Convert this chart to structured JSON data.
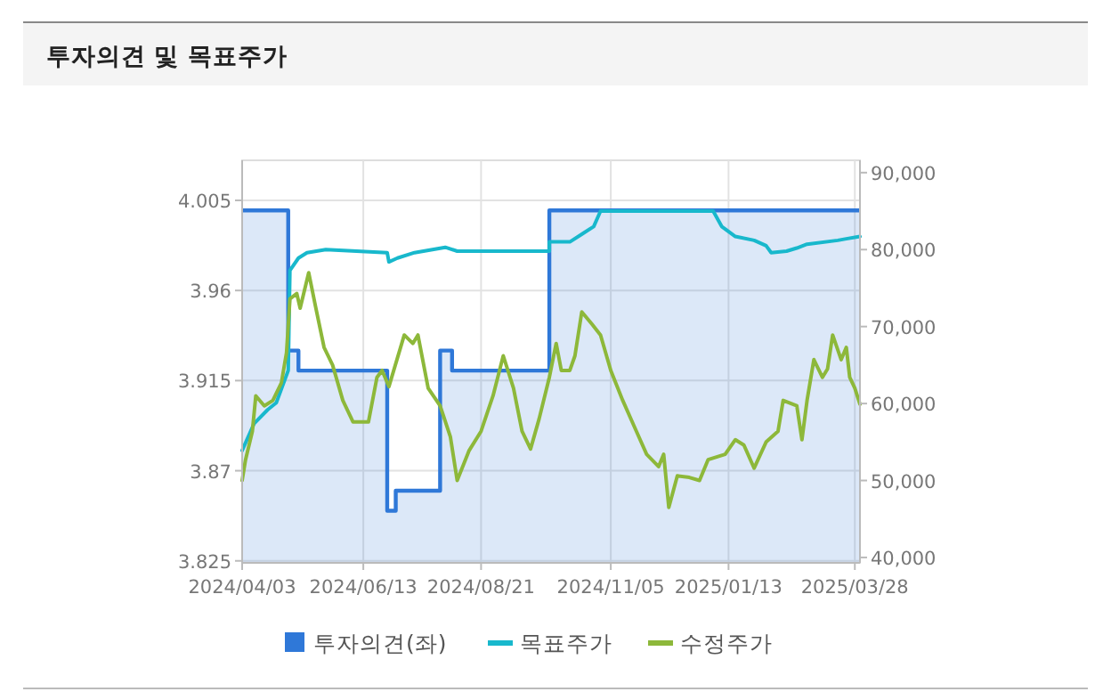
{
  "chart_data": {
    "type": "line",
    "title": "투자의견 및 목표주가",
    "xlim": [
      "2024-04-03",
      "2025-03-31"
    ],
    "xticks": [
      {
        "value": "2024-04-03",
        "label": "2024/04/03"
      },
      {
        "value": "2024-06-13",
        "label": "2024/06/13"
      },
      {
        "value": "2024-08-21",
        "label": "2024/08/21"
      },
      {
        "value": "2024-11-05",
        "label": "2024/11/05"
      },
      {
        "value": "2025-01-13",
        "label": "2025/01/13"
      },
      {
        "value": "2025-03-28",
        "label": "2025/03/28"
      }
    ],
    "ylim": [
      3.824,
      4.025
    ],
    "yticks": [
      3.825,
      3.87,
      3.915,
      3.96,
      4.005
    ],
    "y2lim": [
      39300,
      91600
    ],
    "y2ticks": [
      {
        "value": 40000,
        "label": "40,000"
      },
      {
        "value": 50000,
        "label": "50,000"
      },
      {
        "value": 60000,
        "label": "60,000"
      },
      {
        "value": 70000,
        "label": "70,000"
      },
      {
        "value": 80000,
        "label": "80,000"
      },
      {
        "value": 90000,
        "label": "90,000"
      }
    ],
    "grid": true,
    "legend": "bottom",
    "series": [
      {
        "name": "투자의견(좌)",
        "type": "area",
        "color": "#2f78d8",
        "x": [
          "2024-04-03",
          "2024-04-30",
          "2024-04-30",
          "2024-05-06",
          "2024-05-06",
          "2024-06-27",
          "2024-06-27",
          "2024-07-02",
          "2024-07-02",
          "2024-07-28",
          "2024-07-28",
          "2024-08-04",
          "2024-08-04",
          "2024-09-30",
          "2024-09-30",
          "2025-03-31"
        ],
        "values": [
          4.0,
          4.0,
          3.93,
          3.93,
          3.92,
          3.92,
          3.85,
          3.85,
          3.86,
          3.86,
          3.93,
          3.93,
          3.92,
          3.92,
          4.0,
          4.0
        ]
      },
      {
        "name": "목표주가",
        "type": "line",
        "axis": "y2",
        "color": "#18b8cc",
        "x": [
          "2024-04-03",
          "2024-04-10",
          "2024-04-18",
          "2024-04-23",
          "2024-04-30",
          "2024-05-01",
          "2024-05-06",
          "2024-05-11",
          "2024-05-22",
          "2024-06-27",
          "2024-06-28",
          "2024-07-03",
          "2024-07-13",
          "2024-07-31",
          "2024-08-07",
          "2024-09-30",
          "2024-09-30",
          "2024-10-12",
          "2024-10-19",
          "2024-10-26",
          "2024-10-30",
          "2025-01-04",
          "2025-01-09",
          "2025-01-17",
          "2025-01-28",
          "2025-02-04",
          "2025-02-07",
          "2025-02-16",
          "2025-02-22",
          "2025-02-28",
          "2025-03-18",
          "2025-03-23",
          "2025-03-31"
        ],
        "values": [
          53900,
          57400,
          59200,
          60100,
          64300,
          77300,
          78900,
          79600,
          80000,
          79600,
          78400,
          78900,
          79600,
          80300,
          79800,
          79800,
          81000,
          81000,
          82000,
          83000,
          85000,
          85000,
          83000,
          81700,
          81200,
          80500,
          79600,
          79800,
          80200,
          80700,
          81200,
          81400,
          81700
        ]
      },
      {
        "name": "수정주가",
        "type": "line",
        "axis": "y2",
        "color": "#8db83a",
        "x": [
          "2024-04-03",
          "2024-04-05",
          "2024-04-09",
          "2024-04-11",
          "2024-04-16",
          "2024-04-21",
          "2024-04-26",
          "2024-04-29",
          "2024-05-01",
          "2024-05-05",
          "2024-05-07",
          "2024-05-12",
          "2024-05-16",
          "2024-05-21",
          "2024-05-26",
          "2024-06-01",
          "2024-06-07",
          "2024-06-16",
          "2024-06-21",
          "2024-06-24",
          "2024-06-28",
          "2024-07-07",
          "2024-07-12",
          "2024-07-15",
          "2024-07-21",
          "2024-07-28",
          "2024-08-03",
          "2024-08-07",
          "2024-08-14",
          "2024-08-21",
          "2024-08-28",
          "2024-09-03",
          "2024-09-09",
          "2024-09-14",
          "2024-09-19",
          "2024-09-24",
          "2024-09-30",
          "2024-10-04",
          "2024-10-07",
          "2024-10-12",
          "2024-10-15",
          "2024-10-19",
          "2024-10-25",
          "2024-10-30",
          "2024-11-05",
          "2024-11-12",
          "2024-11-20",
          "2024-11-26",
          "2024-12-03",
          "2024-12-06",
          "2024-12-09",
          "2024-12-14",
          "2024-12-21",
          "2024-12-27",
          "2025-01-01",
          "2025-01-11",
          "2025-01-17",
          "2025-01-22",
          "2025-01-28",
          "2025-02-04",
          "2025-02-11",
          "2025-02-14",
          "2025-02-22",
          "2025-02-25",
          "2025-02-28",
          "2025-03-04",
          "2025-03-09",
          "2025-03-12",
          "2025-03-15",
          "2025-03-20",
          "2025-03-23",
          "2025-03-25",
          "2025-03-28",
          "2025-03-31"
        ],
        "values": [
          50000,
          52700,
          56400,
          61000,
          59700,
          60400,
          62700,
          66600,
          73600,
          74300,
          72400,
          77000,
          72600,
          67300,
          65000,
          60400,
          57600,
          57600,
          63400,
          64300,
          62200,
          68900,
          67800,
          68900,
          62000,
          59700,
          55700,
          50000,
          53900,
          56400,
          61000,
          66200,
          62000,
          56400,
          54100,
          58000,
          63400,
          67800,
          64300,
          64300,
          66200,
          71900,
          70300,
          68900,
          64300,
          60400,
          56400,
          53400,
          51800,
          53400,
          46500,
          50600,
          50400,
          50000,
          52700,
          53400,
          55300,
          54600,
          51600,
          55000,
          56400,
          60400,
          59700,
          55300,
          60400,
          65700,
          63400,
          64500,
          68900,
          65700,
          67300,
          63400,
          62000,
          59900
        ]
      }
    ]
  }
}
